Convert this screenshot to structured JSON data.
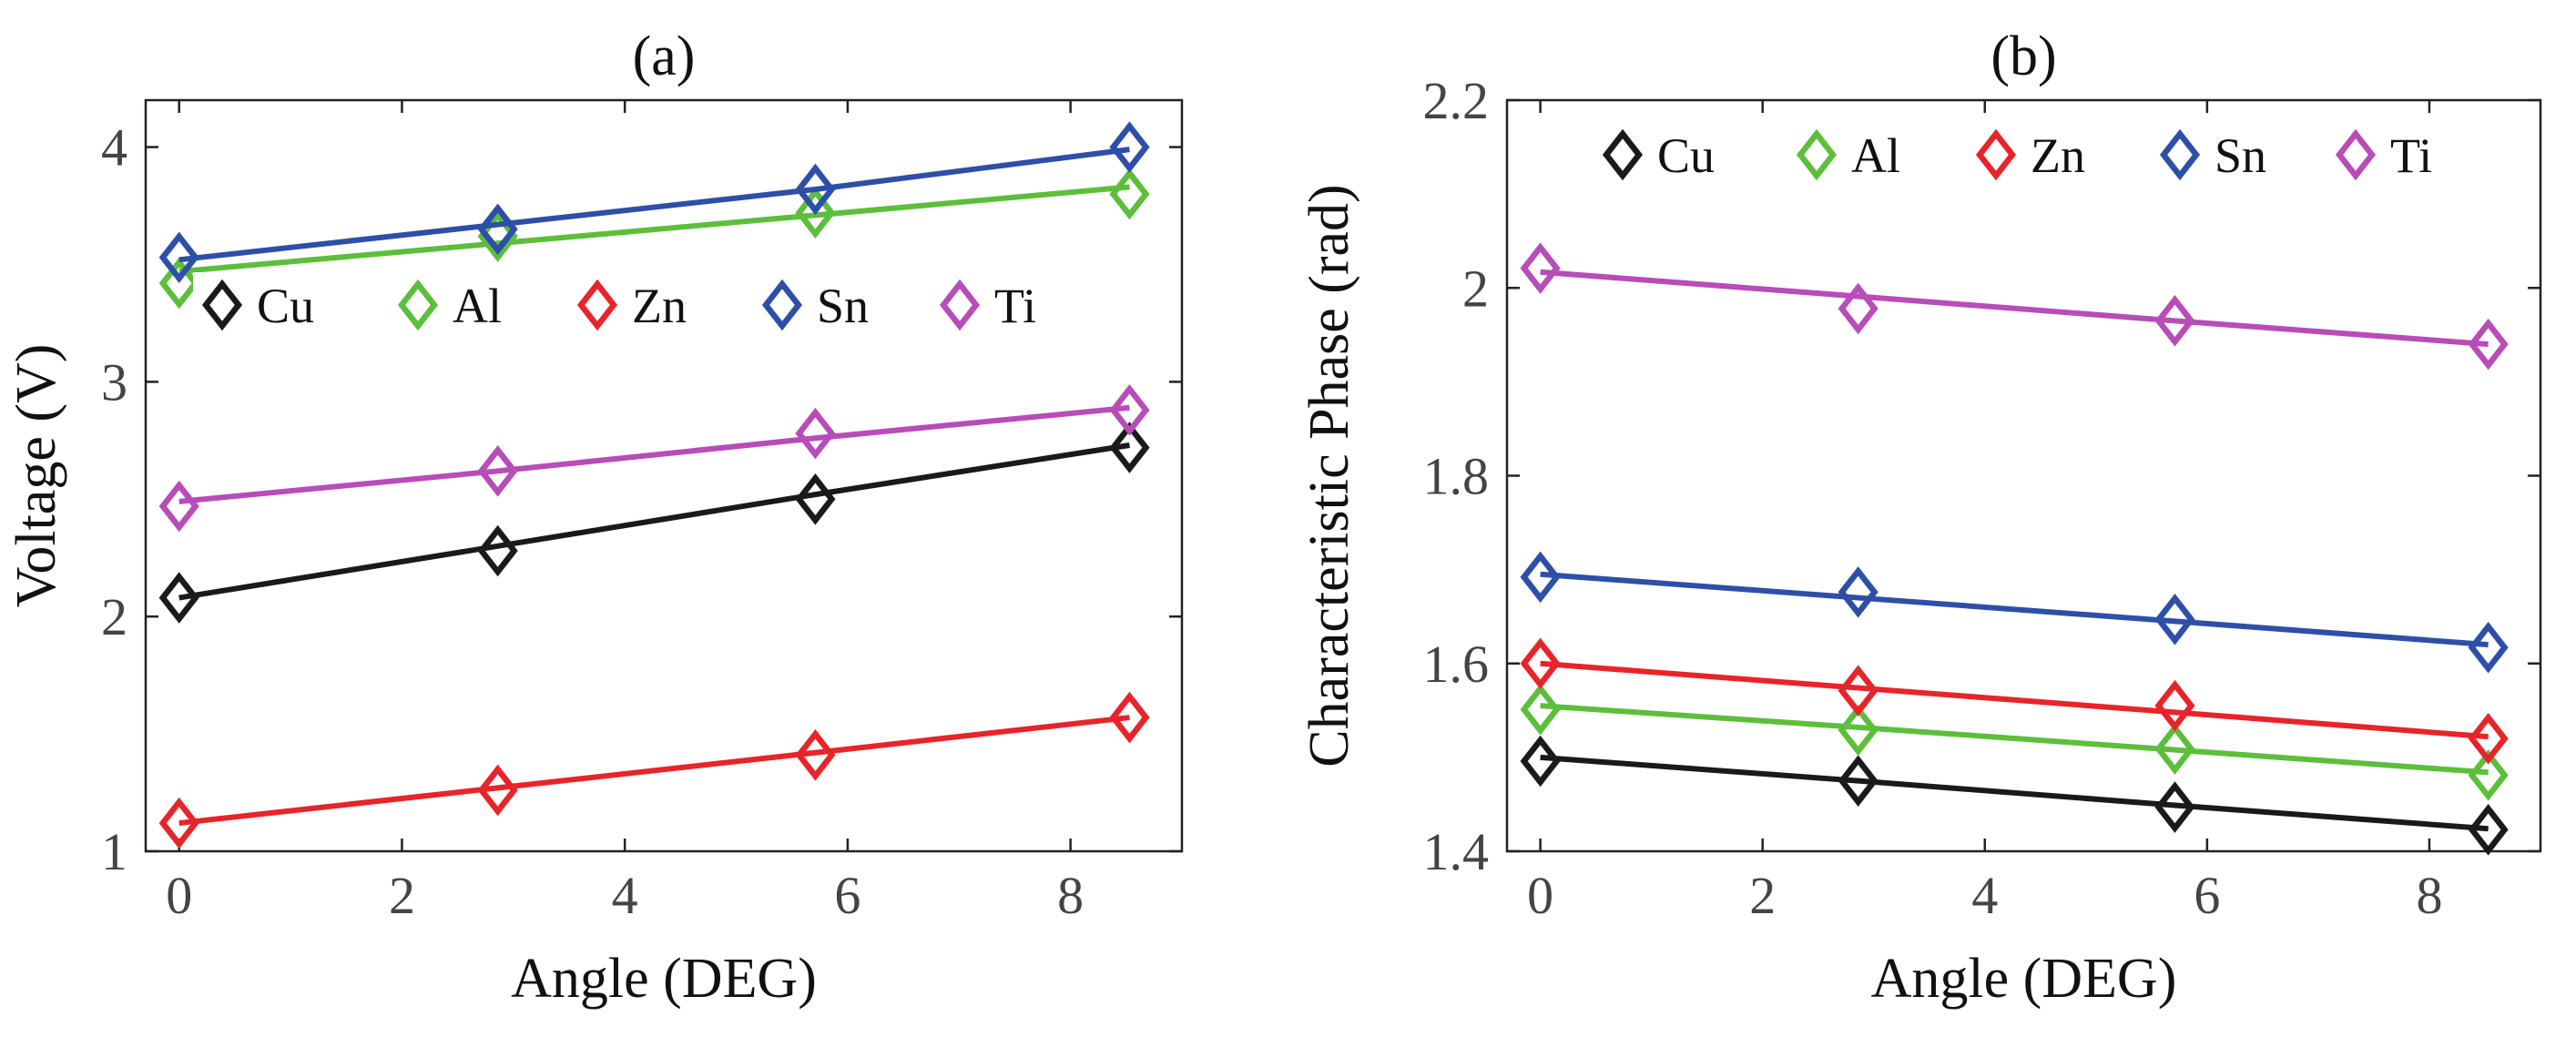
{
  "chart_data": [
    {
      "type": "line",
      "title": "(a)",
      "xlabel": "Angle (DEG)",
      "ylabel": "Voltage (V)",
      "xlim": [
        -0.3,
        9
      ],
      "ylim": [
        1,
        4.2
      ],
      "xticks": [
        0,
        2,
        4,
        6,
        8
      ],
      "yticks": [
        1,
        2,
        3,
        4
      ],
      "x": [
        0,
        2.86,
        5.71,
        8.53
      ],
      "marker": "diamond",
      "legend": "center-left, horizontal",
      "series": [
        {
          "name": "Cu",
          "color": "#1a1a1a",
          "points": [
            2.08,
            2.28,
            2.5,
            2.72
          ],
          "fit": [
            2.08,
            2.3,
            2.52,
            2.73
          ]
        },
        {
          "name": "Al",
          "color": "#5cbf3c",
          "points": [
            3.42,
            3.62,
            3.72,
            3.8
          ],
          "fit": [
            3.47,
            3.59,
            3.71,
            3.83
          ]
        },
        {
          "name": "Zn",
          "color": "#e8242b",
          "points": [
            1.12,
            1.26,
            1.41,
            1.57
          ],
          "fit": [
            1.12,
            1.27,
            1.42,
            1.57
          ]
        },
        {
          "name": "Sn",
          "color": "#2e4fa8",
          "points": [
            3.53,
            3.65,
            3.82,
            4.0
          ],
          "fit": [
            3.52,
            3.67,
            3.82,
            3.99
          ]
        },
        {
          "name": "Ti",
          "color": "#b84cb8",
          "points": [
            2.47,
            2.62,
            2.78,
            2.88
          ],
          "fit": [
            2.49,
            2.62,
            2.76,
            2.89
          ]
        }
      ]
    },
    {
      "type": "line",
      "title": "(b)",
      "xlabel": "Angle (DEG)",
      "ylabel": "Characteristic Phase (rad)",
      "xlim": [
        -0.3,
        9
      ],
      "ylim": [
        1.4,
        2.2
      ],
      "xticks": [
        0,
        2,
        4,
        6,
        8
      ],
      "yticks": [
        1.4,
        1.6,
        1.8,
        2,
        2.2
      ],
      "ytick_labels": [
        "1.4",
        "1.6",
        "1.8",
        "2",
        "2.2"
      ],
      "x": [
        0,
        2.86,
        5.71,
        8.53
      ],
      "marker": "diamond",
      "legend": "top, horizontal",
      "series": [
        {
          "name": "Cu",
          "color": "#1a1a1a",
          "points": [
            1.496,
            1.475,
            1.447,
            1.423
          ],
          "fit": [
            1.5,
            1.475,
            1.449,
            1.424
          ]
        },
        {
          "name": "Al",
          "color": "#5cbf3c",
          "points": [
            1.551,
            1.529,
            1.509,
            1.481
          ],
          "fit": [
            1.555,
            1.532,
            1.508,
            1.484
          ]
        },
        {
          "name": "Zn",
          "color": "#e8242b",
          "points": [
            1.6,
            1.571,
            1.555,
            1.52
          ],
          "fit": [
            1.6,
            1.574,
            1.548,
            1.522
          ]
        },
        {
          "name": "Sn",
          "color": "#2e4fa8",
          "points": [
            1.692,
            1.676,
            1.647,
            1.617
          ],
          "fit": [
            1.695,
            1.67,
            1.645,
            1.62
          ]
        },
        {
          "name": "Ti",
          "color": "#b84cb8",
          "points": [
            2.021,
            1.978,
            1.965,
            1.94
          ],
          "fit": [
            2.017,
            1.991,
            1.965,
            1.94
          ]
        }
      ]
    }
  ]
}
